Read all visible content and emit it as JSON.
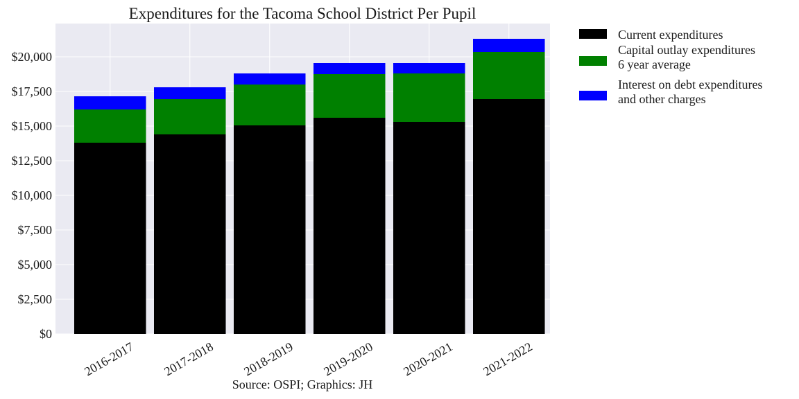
{
  "chart_data": {
    "type": "bar",
    "stacked": true,
    "title": "Expenditures for the Tacoma School District Per Pupil",
    "xlabel": "",
    "ylabel": "",
    "caption": "Source: OSPI; Graphics: JH",
    "categories": [
      "2016-2017",
      "2017-2018",
      "2018-2019",
      "2019-2020",
      "2020-2021",
      "2021-2022"
    ],
    "y_ticks": [
      "$0",
      "$2,500",
      "$5,000",
      "$7,500",
      "$10,000",
      "$12,500",
      "$15,000",
      "$17,500",
      "$20,000"
    ],
    "ylim": [
      0,
      22400
    ],
    "grid": true,
    "legend_position": "outside-right",
    "series": [
      {
        "name": "Current expenditures",
        "color": "#000000",
        "values": [
          13800,
          14400,
          15050,
          15600,
          15300,
          16950
        ]
      },
      {
        "name": "Capital outlay expenditures\n6 year average",
        "color": "#008000",
        "values": [
          2400,
          2550,
          2950,
          3150,
          3500,
          3400
        ]
      },
      {
        "name": "Interest on debt expenditures\nand other charges",
        "color": "#0000ff",
        "values": [
          950,
          850,
          800,
          800,
          750,
          950
        ]
      }
    ],
    "background_color": "#eaeaf2"
  }
}
